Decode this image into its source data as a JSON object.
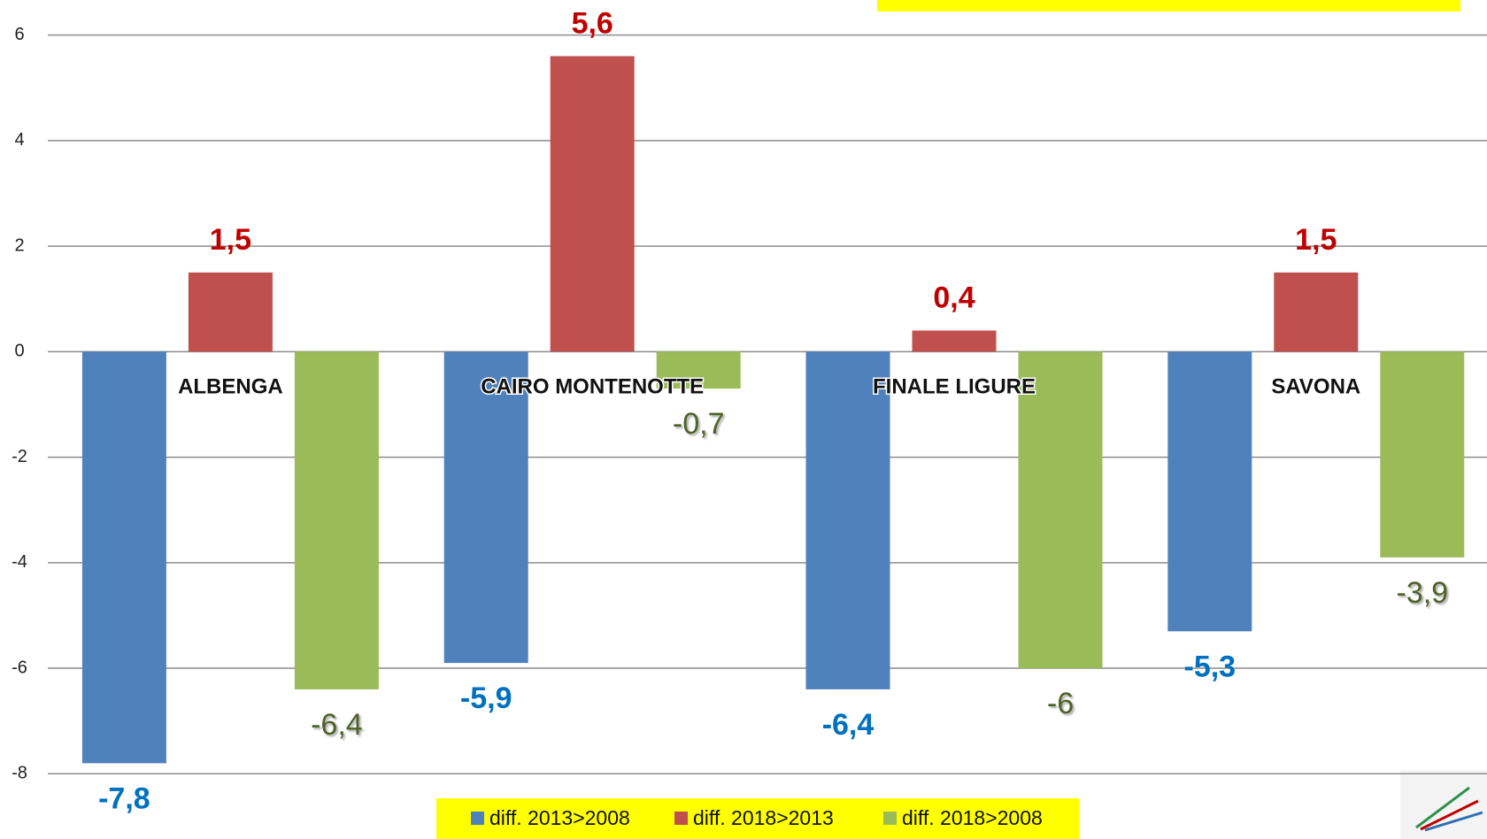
{
  "chart_data": {
    "type": "bar",
    "categories": [
      "ALBENGA",
      "CAIRO MONTENOTTE",
      "FINALE LIGURE",
      "SAVONA"
    ],
    "series": [
      {
        "name": "diff. 2013>2008",
        "color": "#4f81bd",
        "values": [
          -7.8,
          -5.9,
          -6.4,
          -5.3
        ],
        "value_labels": [
          "-7,8",
          "-5,9",
          "-6,4",
          "-5,3"
        ]
      },
      {
        "name": "diff. 2018>2013",
        "color": "#c0504d",
        "values": [
          1.5,
          5.6,
          0.4,
          1.5
        ],
        "value_labels": [
          "1,5",
          "5,6",
          "0,4",
          "1,5"
        ]
      },
      {
        "name": "diff. 2018>2008",
        "color": "#9bbb59",
        "values": [
          -6.4,
          -0.7,
          -6,
          -3.9
        ],
        "value_labels": [
          "-6,4",
          "-0,7",
          "-6",
          "-3,9"
        ]
      }
    ],
    "ylim": [
      -8,
      6
    ],
    "yticks": [
      -8,
      -6,
      -4,
      -2,
      0,
      2,
      4,
      6
    ],
    "grid": true
  }
}
